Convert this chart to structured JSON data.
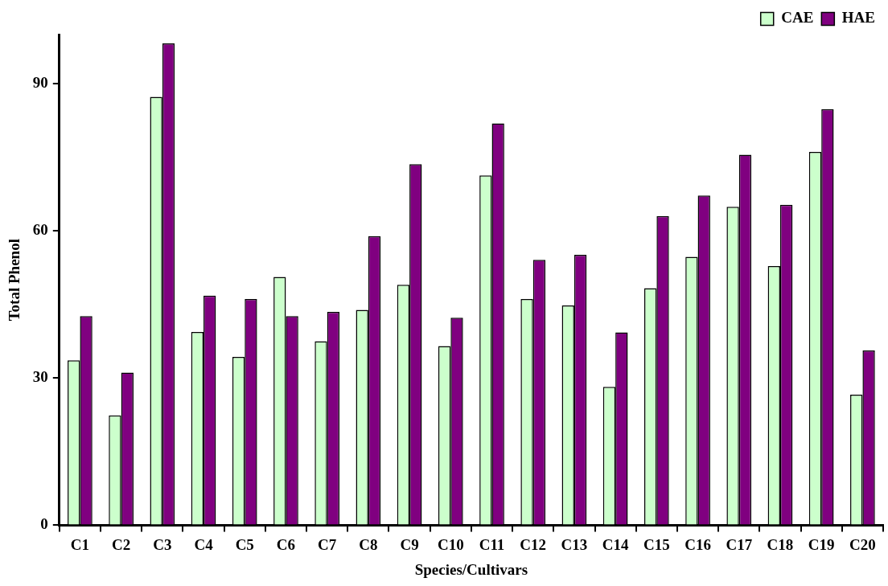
{
  "chart_data": {
    "type": "bar",
    "xlabel": "Species/Cultivars",
    "ylabel": "Total Phenol",
    "categories": [
      "C1",
      "C2",
      "C3",
      "C4",
      "C5",
      "C6",
      "C7",
      "C8",
      "C9",
      "C10",
      "C11",
      "C12",
      "C13",
      "C14",
      "C15",
      "C16",
      "C17",
      "C18",
      "C19",
      "C20"
    ],
    "series": [
      {
        "name": "CAE",
        "color": "#ccffcc",
        "values": [
          33.6,
          22.4,
          87.3,
          39.4,
          34.3,
          50.6,
          37.5,
          43.9,
          49.0,
          36.5,
          71.3,
          46.1,
          44.8,
          28.2,
          48.3,
          54.7,
          64.9,
          52.8,
          76.1,
          26.6
        ]
      },
      {
        "name": "HAE",
        "color": "#800080",
        "values": [
          42.6,
          31.1,
          98.2,
          46.8,
          46.1,
          42.6,
          43.5,
          58.9,
          73.6,
          42.3,
          81.9,
          54.1,
          55.1,
          39.3,
          63.0,
          67.2,
          75.5,
          65.3,
          84.8,
          35.6
        ]
      }
    ],
    "ylim": [
      0,
      100
    ],
    "yticks": [
      0,
      30,
      60,
      90
    ],
    "grid": false,
    "legend": "top right"
  }
}
